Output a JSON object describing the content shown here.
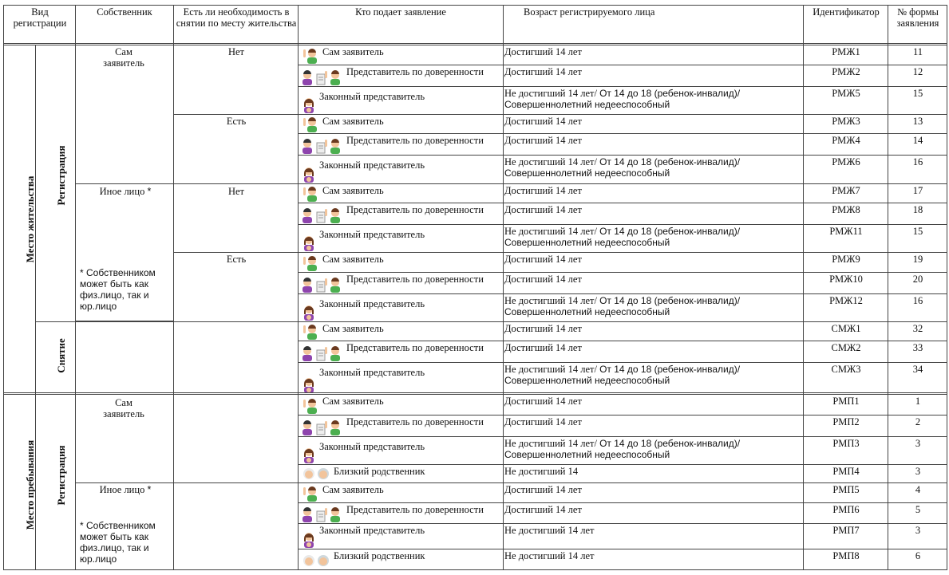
{
  "headers": {
    "vid_registracii": "Вид регистрации",
    "sobstvennik": "Собственник",
    "neobhodimost": "Есть ли необходимость в снятии по месту жительства",
    "kto_podaet": "Кто подает заявление",
    "vozrast": "Возраст регистрируемого лица",
    "identifikator": "Идентификатор",
    "nomer_formy": "№ формы заявления"
  },
  "groups": {
    "mesto_zhitelstva": "Место жительства",
    "mesto_prebyvaniya": "Место пребывания",
    "registraciya": "Регистрация",
    "snyatie": "Снятие"
  },
  "owners": {
    "sam": "Сам заявитель",
    "inoe": "Иное лицо",
    "star": "*",
    "note": "* Собственником может быть как физ.лицо, так и юр.лицо"
  },
  "need": {
    "net": "Нет",
    "est": "Есть"
  },
  "rows": [
    {
      "who": "Сам заявитель",
      "icon": "man-raising-hand-icon",
      "age1": "Достигший 14 лет",
      "age2": "",
      "age3": "",
      "id": "РМЖ1",
      "form": "11"
    },
    {
      "who": "Представитель по доверенности",
      "icon": "proxy-representative-icon",
      "age1": "Достигший 14 лет",
      "age2": "",
      "age3": "",
      "id": "РМЖ2",
      "form": "12"
    },
    {
      "who": "Законный представитель",
      "icon": "legal-representative-icon",
      "age1": "Не достигший 14 лет/ ",
      "age2": "От 14 до 18 (ребенок-инвалид)/",
      "age3": "Совершеннолетний недееспособный",
      "id": "РМЖ5",
      "form": "15"
    },
    {
      "who": "Сам заявитель",
      "icon": "man-raising-hand-icon",
      "age1": "Достигший 14 лет",
      "age2": "",
      "age3": "",
      "id": "РМЖ3",
      "form": "13"
    },
    {
      "who": "Представитель по доверенности",
      "icon": "proxy-representative-icon",
      "age1": "Достигший 14 лет",
      "age2": "",
      "age3": "",
      "id": "РМЖ4",
      "form": "14"
    },
    {
      "who": "Законный представитель",
      "icon": "legal-representative-icon",
      "age1": "Не достигший 14 лет/ ",
      "age2": "От 14 до 18 (ребенок-инвалид)/",
      "age3": "Совершеннолетний недееспособный",
      "id": "РМЖ6",
      "form": "16"
    },
    {
      "who": "Сам заявитель",
      "icon": "man-raising-hand-icon",
      "age1": "Достигший 14 лет",
      "age2": "",
      "age3": "",
      "id": "РМЖ7",
      "form": "17"
    },
    {
      "who": "Представитель по доверенности",
      "icon": "proxy-representative-icon",
      "age1": "Достигший 14 лет",
      "age2": "",
      "age3": "",
      "id": "РМЖ8",
      "form": "18"
    },
    {
      "who": "Законный представитель",
      "icon": "legal-representative-icon",
      "age1": "Не достигший 14 лет/ ",
      "age2": "От 14 до 18 (ребенок-инвалид)/",
      "age3": "Совершеннолетний недееспособный",
      "id": "РМЖ11",
      "form": "15"
    },
    {
      "who": "Сам заявитель",
      "icon": "man-raising-hand-icon",
      "age1": "Достигший 14 лет",
      "age2": "",
      "age3": "",
      "id": "РМЖ9",
      "form": "19"
    },
    {
      "who": "Представитель по доверенности",
      "icon": "proxy-representative-icon",
      "age1": "Достигший 14 лет",
      "age2": "",
      "age3": "",
      "id": "РМЖ10",
      "form": "20"
    },
    {
      "who": "Законный представитель",
      "icon": "legal-representative-icon",
      "age1": "Не достигший 14 лет/ ",
      "age2": "От 14 до 18 (ребенок-инвалид)/",
      "age3": "Совершеннолетний недееспособный",
      "id": "РМЖ12",
      "form": "16"
    },
    {
      "who": "Сам заявитель",
      "icon": "man-raising-hand-icon",
      "age1": "Достигший 14 лет",
      "age2": "",
      "age3": "",
      "id": "СМЖ1",
      "form": "32"
    },
    {
      "who": "Представитель по доверенности",
      "icon": "proxy-representative-icon",
      "age1": "Достигший 14 лет",
      "age2": "",
      "age3": "",
      "id": "СМЖ2",
      "form": "33"
    },
    {
      "who": "Законный представитель",
      "icon": "legal-representative-icon",
      "age1": "Не достигший 14 лет/ ",
      "age2": "От 14 до 18 (ребенок-инвалид)/",
      "age3": "Совершеннолетний недееспособный",
      "id": "СМЖ3",
      "form": "34"
    },
    {
      "who": "Сам заявитель",
      "icon": "man-raising-hand-icon",
      "age1": "Достигший 14 лет",
      "age2": "",
      "age3": "",
      "id": "РМП1",
      "form": "1"
    },
    {
      "who": "Представитель по доверенности",
      "icon": "proxy-representative-icon",
      "age1": "Достигший 14 лет",
      "age2": "",
      "age3": "",
      "id": "РМП2",
      "form": "2"
    },
    {
      "who": "Законный представитель",
      "icon": "legal-representative-icon",
      "age1": "Не достигший 14 лет/ ",
      "age2": "От 14 до 18 (ребенок-инвалид)/",
      "age3": "Совершеннолетний недееспособный",
      "id": "РМП3",
      "form": "3"
    },
    {
      "who": "Близкий родственник",
      "icon": "close-relative-icon",
      "age1": "Не достигший 14",
      "age2": "",
      "age3": "",
      "id": "РМП4",
      "form": "3"
    },
    {
      "who": "Сам заявитель",
      "icon": "man-raising-hand-icon",
      "age1": "Достигший 14 лет",
      "age2": "",
      "age3": "",
      "id": "РМП5",
      "form": "4"
    },
    {
      "who": "Представитель по доверенности",
      "icon": "proxy-representative-icon",
      "age1": "Достигший 14 лет",
      "age2": "",
      "age3": "",
      "id": "РМП6",
      "form": "5"
    },
    {
      "who": "Законный представитель",
      "icon": "legal-representative-icon",
      "age1": "Не достигший 14 лет",
      "age2": "",
      "age3": "",
      "id": "РМП7",
      "form": "3"
    },
    {
      "who": "Близкий родственник",
      "icon": "close-relative-icon",
      "age1": "Не достигший 14 лет",
      "age2": "",
      "age3": "",
      "id": "РМП8",
      "form": "6"
    }
  ],
  "colors": {
    "border": "#444444",
    "skin": "#f2c49b",
    "shirt_green": "#4caf50",
    "hair_brown": "#6b3a1f",
    "woman_purple": "#8e44ad"
  }
}
